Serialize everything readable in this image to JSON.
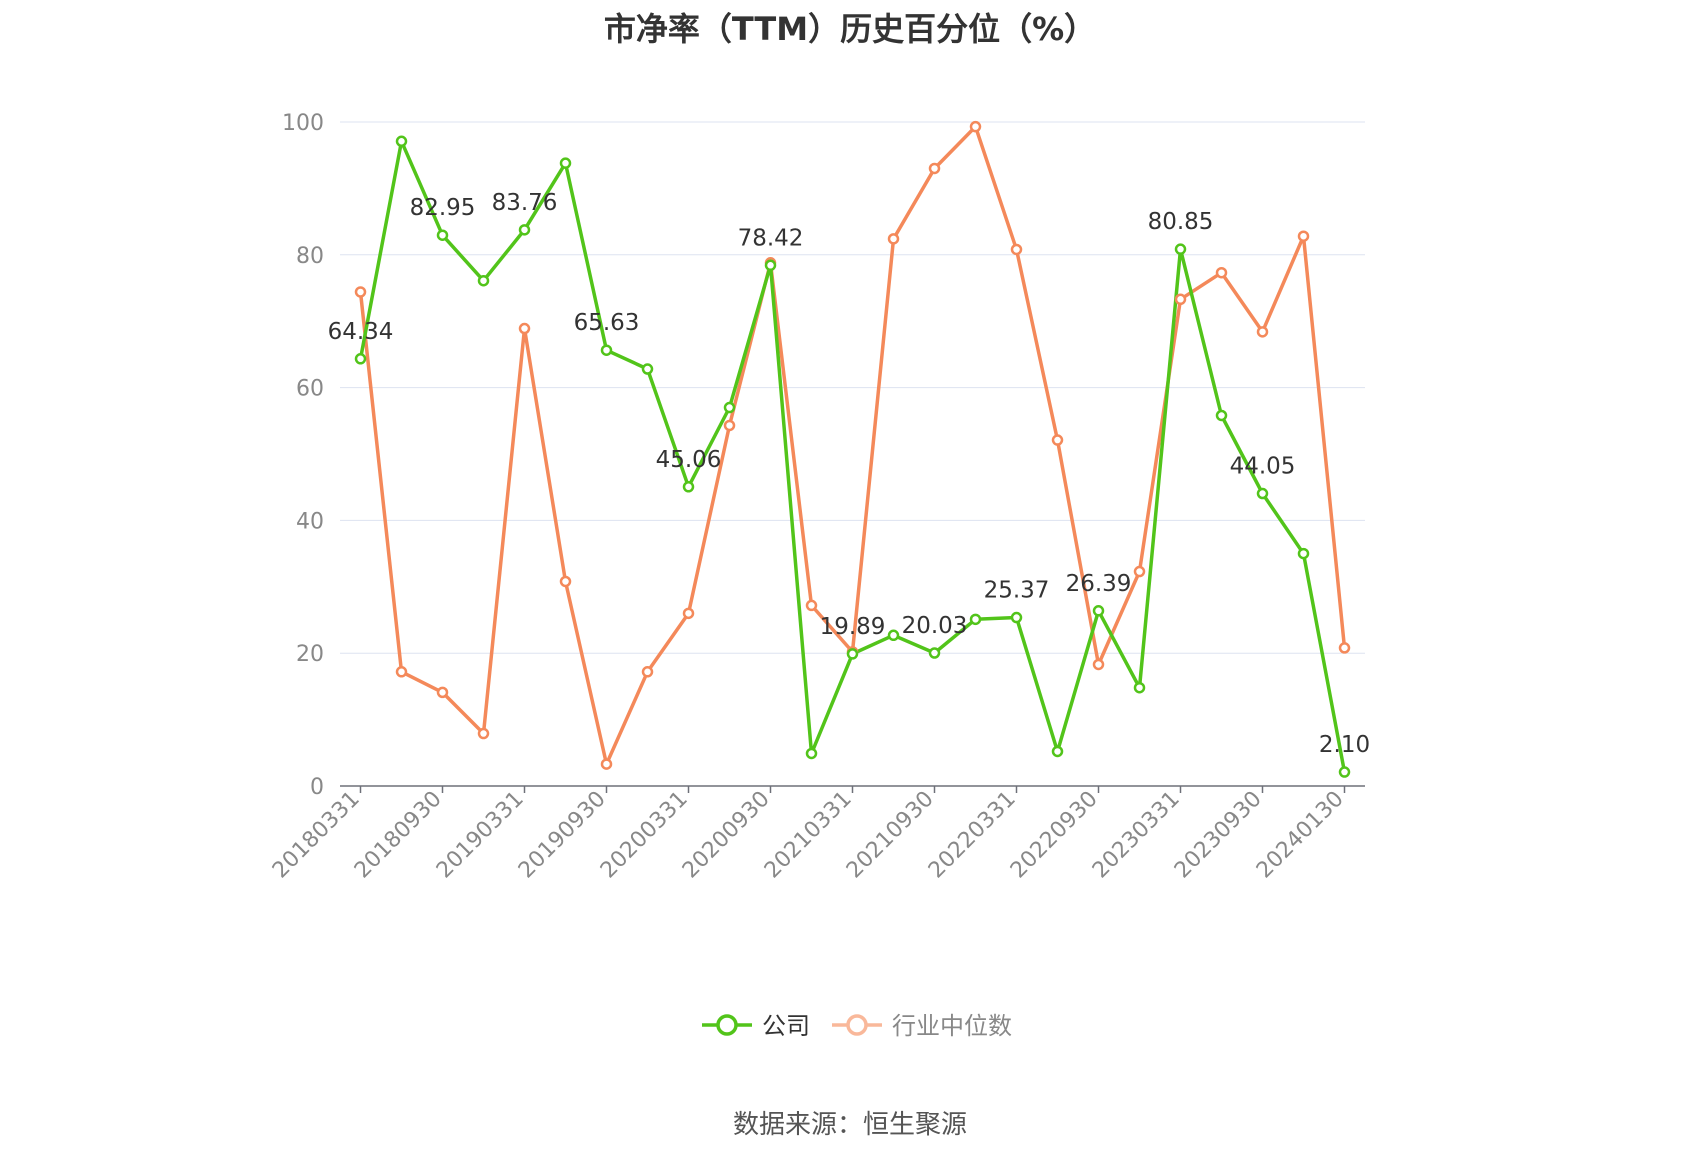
{
  "chart_data": {
    "type": "line",
    "title": "市净率（TTM）历史百分位（%）",
    "ylim": [
      0,
      100
    ],
    "yticks": [
      0,
      20,
      40,
      60,
      80,
      100
    ],
    "grid": true,
    "legend_position": "bottom-center",
    "x_tick_labels": [
      "20180331",
      "20180930",
      "20190331",
      "20190930",
      "20200331",
      "20200930",
      "20210331",
      "20210930",
      "20220331",
      "20220930",
      "20230331",
      "20230930",
      "20240130"
    ],
    "x": [
      "20180331",
      "20180630",
      "20180930",
      "20181231",
      "20190331",
      "20190630",
      "20190930",
      "20191231",
      "20200331",
      "20200630",
      "20200930",
      "20201231",
      "20210331",
      "20210630",
      "20210930",
      "20211231",
      "20220331",
      "20220630",
      "20220930",
      "20221231",
      "20230331",
      "20230630",
      "20230930",
      "20231231",
      "20240130"
    ],
    "series": [
      {
        "name": "公司",
        "color": "#52c41a",
        "values": [
          64.34,
          97.1,
          82.95,
          76.1,
          83.76,
          93.8,
          65.63,
          62.8,
          45.06,
          57.0,
          78.42,
          4.9,
          19.89,
          22.7,
          20.03,
          25.1,
          25.37,
          5.2,
          26.39,
          14.8,
          80.85,
          55.8,
          44.05,
          35.0,
          2.1
        ],
        "labels": [
          "64.34",
          null,
          "82.95",
          null,
          "83.76",
          null,
          "65.63",
          null,
          "45.06",
          null,
          "78.42",
          null,
          "19.89",
          null,
          "20.03",
          null,
          "25.37",
          null,
          "26.39",
          null,
          "80.85",
          null,
          "44.05",
          null,
          "2.10"
        ]
      },
      {
        "name": "行业中位数",
        "color": "#f4895a",
        "values": [
          74.4,
          17.2,
          14.1,
          7.9,
          68.9,
          30.8,
          3.3,
          17.2,
          26.0,
          54.3,
          78.8,
          27.2,
          20.2,
          82.4,
          93.0,
          99.3,
          80.8,
          52.1,
          18.3,
          32.3,
          73.3,
          77.3,
          68.4,
          82.8,
          20.8
        ],
        "labels": []
      }
    ]
  },
  "source": "数据来源：恒生聚源"
}
